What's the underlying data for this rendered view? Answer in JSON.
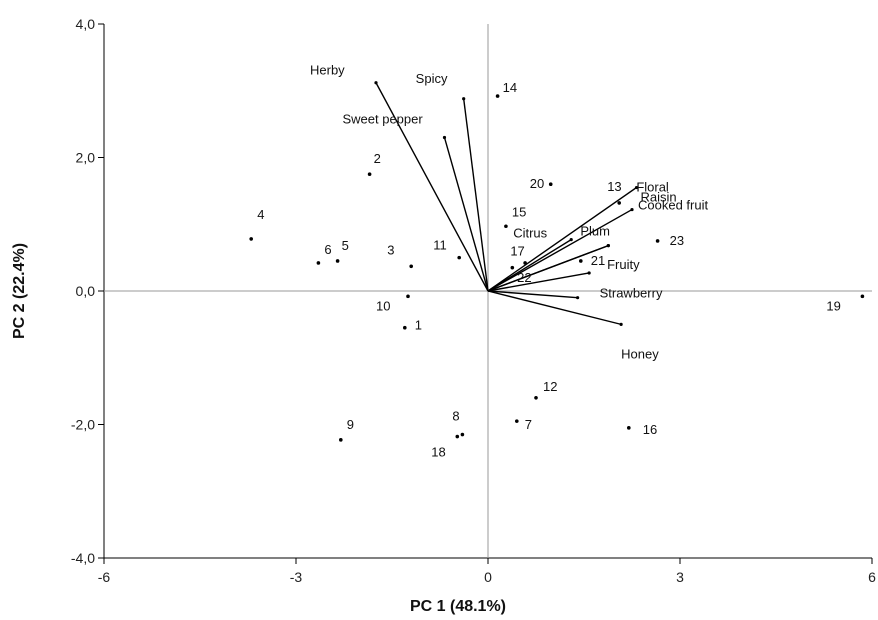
{
  "chart_data": {
    "type": "scatter",
    "subtype": "biplot",
    "xlabel": "PC 1 (48.1%)",
    "ylabel": "PC 2 (22.4%)",
    "xlim": [
      -6,
      6
    ],
    "ylim": [
      -4,
      4
    ],
    "x_ticks": [
      -6,
      -3,
      0,
      3,
      6
    ],
    "x_tick_labels": [
      "-6",
      "-3",
      "0",
      "3",
      "6"
    ],
    "y_ticks": [
      -4,
      -2,
      0,
      2,
      4
    ],
    "y_tick_labels": [
      "-4,0",
      "-2,0",
      "0,0",
      "2,0",
      "4,0"
    ],
    "grid": false,
    "points": [
      {
        "label": "1",
        "x": -1.3,
        "y": -0.55
      },
      {
        "label": "2",
        "x": -1.85,
        "y": 1.75
      },
      {
        "label": "3",
        "x": -1.2,
        "y": 0.37
      },
      {
        "label": "4",
        "x": -3.7,
        "y": 0.78
      },
      {
        "label": "5",
        "x": -2.35,
        "y": 0.45
      },
      {
        "label": "6",
        "x": -2.65,
        "y": 0.42
      },
      {
        "label": "7",
        "x": 0.45,
        "y": -1.95
      },
      {
        "label": "8",
        "x": -0.4,
        "y": -2.15
      },
      {
        "label": "9",
        "x": -2.3,
        "y": -2.23
      },
      {
        "label": "10",
        "x": -1.25,
        "y": -0.08
      },
      {
        "label": "11",
        "x": -0.45,
        "y": 0.5
      },
      {
        "label": "12",
        "x": 0.75,
        "y": -1.6
      },
      {
        "label": "13",
        "x": 2.05,
        "y": 1.32
      },
      {
        "label": "14",
        "x": 0.15,
        "y": 2.92
      },
      {
        "label": "15",
        "x": 0.28,
        "y": 0.97
      },
      {
        "label": "16",
        "x": 2.2,
        "y": -2.05
      },
      {
        "label": "17",
        "x": 0.38,
        "y": 0.35
      },
      {
        "label": "18",
        "x": -0.48,
        "y": -2.18
      },
      {
        "label": "19",
        "x": 5.85,
        "y": -0.08
      },
      {
        "label": "20",
        "x": 0.98,
        "y": 1.6
      },
      {
        "label": "21",
        "x": 1.45,
        "y": 0.45
      },
      {
        "label": "22",
        "x": 0.58,
        "y": 0.42
      },
      {
        "label": "23",
        "x": 2.65,
        "y": 0.75
      }
    ],
    "vectors": [
      {
        "label": "Herby",
        "x": -1.75,
        "y": 3.12
      },
      {
        "label": "Spicy",
        "x": -0.38,
        "y": 2.88
      },
      {
        "label": "Sweet pepper",
        "x": -0.68,
        "y": 2.3
      },
      {
        "label": "Raisin",
        "x": 2.32,
        "y": 1.55
      },
      {
        "label": "Cooked fruit",
        "x": 2.25,
        "y": 1.22
      },
      {
        "label": "Citrus",
        "x": 1.3,
        "y": 0.77
      },
      {
        "label": "Floral",
        "x": 1.88,
        "y": 0.68
      },
      {
        "label": "Plum",
        "x": 1.88,
        "y": 0.68
      },
      {
        "label": "Fruity",
        "x": 1.58,
        "y": 0.27
      },
      {
        "label": "Strawberry",
        "x": 1.4,
        "y": -0.1
      },
      {
        "label": "Honey",
        "x": 2.08,
        "y": -0.5
      }
    ]
  }
}
